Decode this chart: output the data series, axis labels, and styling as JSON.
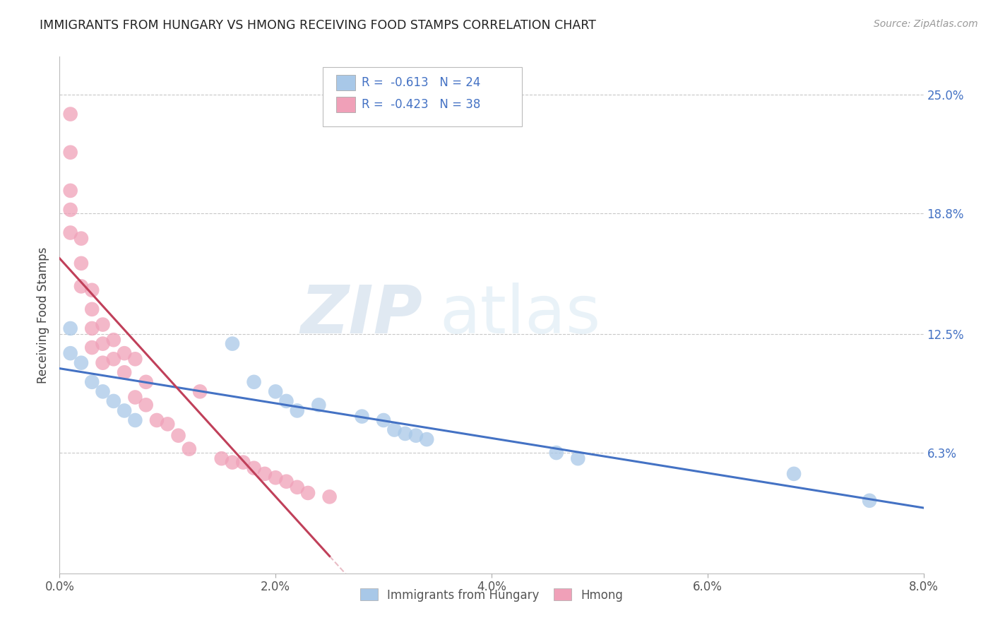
{
  "title": "IMMIGRANTS FROM HUNGARY VS HMONG RECEIVING FOOD STAMPS CORRELATION CHART",
  "source": "Source: ZipAtlas.com",
  "xlabel": "",
  "ylabel": "Receiving Food Stamps",
  "xlim": [
    0.0,
    0.08
  ],
  "ylim": [
    0.0,
    0.27
  ],
  "xtick_labels": [
    "0.0%",
    "2.0%",
    "4.0%",
    "6.0%",
    "8.0%"
  ],
  "xtick_vals": [
    0.0,
    0.02,
    0.04,
    0.06,
    0.08
  ],
  "ytick_labels_right": [
    "6.3%",
    "12.5%",
    "18.8%",
    "25.0%"
  ],
  "ytick_vals_right": [
    0.063,
    0.125,
    0.188,
    0.25
  ],
  "grid_color": "#c8c8c8",
  "background_color": "#ffffff",
  "hungary_color": "#a8c8e8",
  "hmong_color": "#f0a0b8",
  "hungary_line_color": "#4472c4",
  "hmong_line_color": "#c0405a",
  "hungary_R": -0.613,
  "hungary_N": 24,
  "hmong_R": -0.423,
  "hmong_N": 38,
  "watermark_zip": "ZIP",
  "watermark_atlas": "atlas",
  "legend_label_hungary": "Immigrants from Hungary",
  "legend_label_hmong": "Hmong",
  "hungary_x": [
    0.001,
    0.001,
    0.002,
    0.003,
    0.004,
    0.005,
    0.006,
    0.007,
    0.016,
    0.018,
    0.02,
    0.021,
    0.022,
    0.024,
    0.028,
    0.03,
    0.031,
    0.032,
    0.033,
    0.034,
    0.046,
    0.048,
    0.068,
    0.075
  ],
  "hungary_y": [
    0.128,
    0.115,
    0.11,
    0.1,
    0.095,
    0.09,
    0.085,
    0.08,
    0.12,
    0.1,
    0.095,
    0.09,
    0.085,
    0.088,
    0.082,
    0.08,
    0.075,
    0.073,
    0.072,
    0.07,
    0.063,
    0.06,
    0.052,
    0.038
  ],
  "hmong_x": [
    0.001,
    0.001,
    0.001,
    0.001,
    0.001,
    0.002,
    0.002,
    0.002,
    0.003,
    0.003,
    0.003,
    0.003,
    0.004,
    0.004,
    0.004,
    0.005,
    0.005,
    0.006,
    0.006,
    0.007,
    0.007,
    0.008,
    0.008,
    0.009,
    0.01,
    0.011,
    0.012,
    0.013,
    0.015,
    0.016,
    0.017,
    0.018,
    0.019,
    0.02,
    0.021,
    0.022,
    0.023,
    0.025
  ],
  "hmong_y": [
    0.24,
    0.22,
    0.2,
    0.19,
    0.178,
    0.175,
    0.162,
    0.15,
    0.148,
    0.138,
    0.128,
    0.118,
    0.13,
    0.12,
    0.11,
    0.122,
    0.112,
    0.115,
    0.105,
    0.112,
    0.092,
    0.1,
    0.088,
    0.08,
    0.078,
    0.072,
    0.065,
    0.095,
    0.06,
    0.058,
    0.058,
    0.055,
    0.052,
    0.05,
    0.048,
    0.045,
    0.042,
    0.04
  ]
}
